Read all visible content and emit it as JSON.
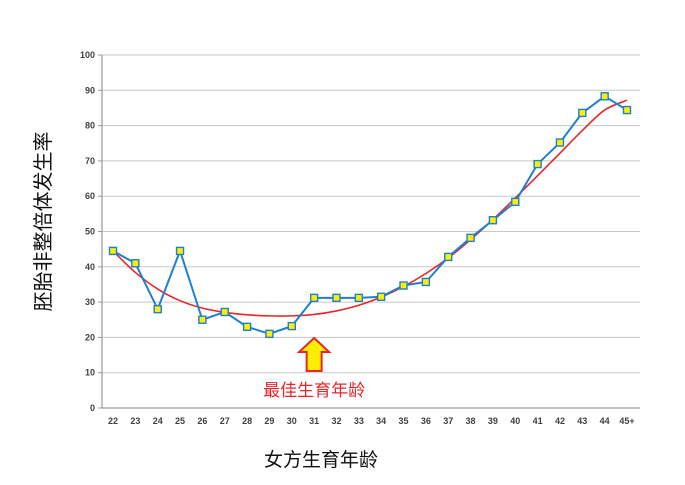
{
  "chart_data": {
    "type": "line",
    "xlabel": "女方生育年龄",
    "ylabel": "胚胎非整倍体发生率",
    "ylim": [
      0,
      100
    ],
    "yticks": [
      0,
      10,
      20,
      30,
      40,
      50,
      60,
      70,
      80,
      90,
      100
    ],
    "grid": true,
    "categories": [
      "22",
      "23",
      "24",
      "25",
      "26",
      "27",
      "28",
      "29",
      "30",
      "31",
      "32",
      "33",
      "34",
      "35",
      "36",
      "37",
      "38",
      "39",
      "40",
      "41",
      "42",
      "43",
      "44",
      "45+"
    ],
    "series": [
      {
        "kind": "observed",
        "values": [
          44.5,
          41,
          28,
          44.5,
          25,
          27.2,
          23,
          21,
          23.2,
          31.2,
          31.2,
          31.2,
          31.5,
          34.7,
          35.7,
          42.8,
          48.2,
          53.2,
          58.4,
          69.1,
          75.2,
          83.6,
          88.3,
          84.4
        ],
        "line_color": "#1f7fd0",
        "marker_color": "#ffee00"
      },
      {
        "kind": "trend",
        "values": [
          44.5,
          38.4,
          33.7,
          30.4,
          28.3,
          27.1,
          26.4,
          26.1,
          26.1,
          26.5,
          27.5,
          29.1,
          31.4,
          34.4,
          38.1,
          42.5,
          47.7,
          53.4,
          59.5,
          65.8,
          72.2,
          78.6,
          84.4,
          87.2
        ],
        "line_color": "#e8262a"
      }
    ],
    "annotation": {
      "text": "最佳生育年龄",
      "category": "31",
      "color": "#e8262a",
      "arrow_fill": "#ffee00",
      "arrow_stroke": "#e8262a"
    },
    "colors": {
      "grid": "#c8c8c8",
      "axis": "#9a9a9a",
      "background": "#ffffff"
    }
  }
}
